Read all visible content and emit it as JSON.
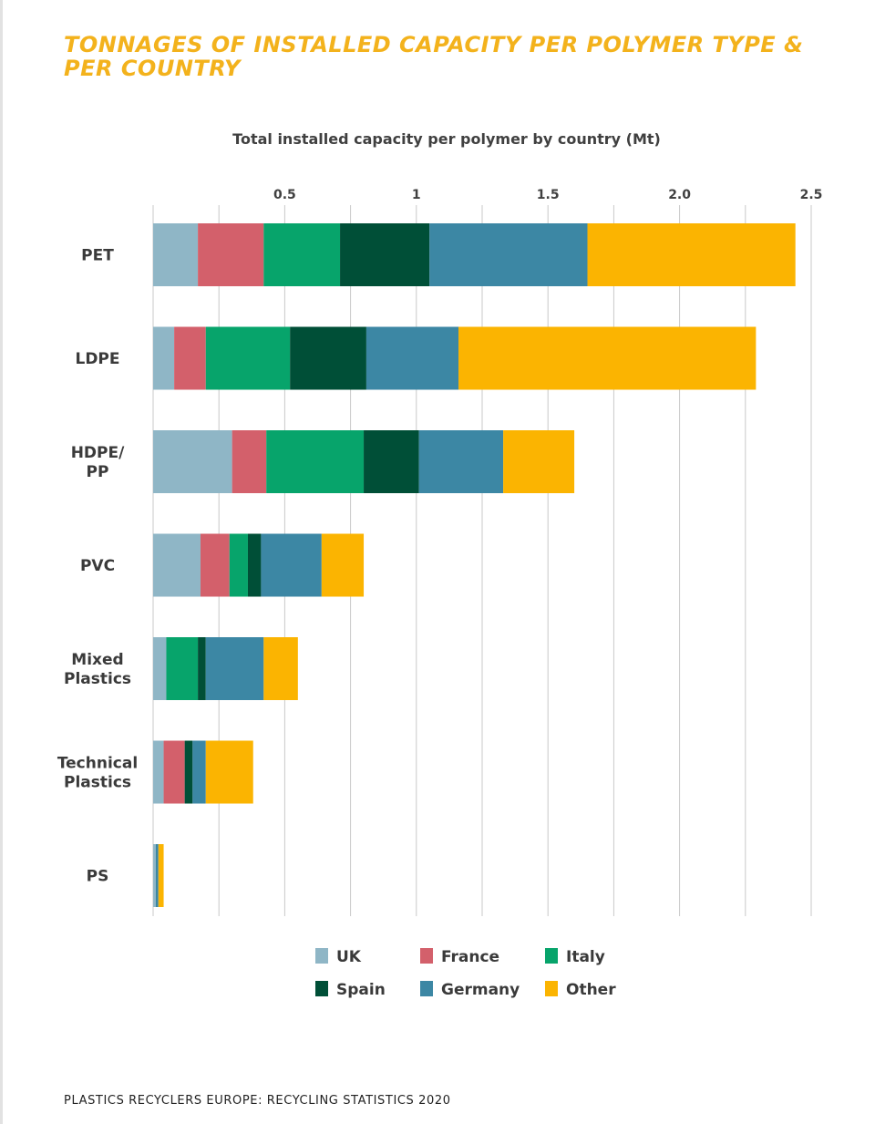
{
  "page": {
    "title": "TONNAGES OF INSTALLED CAPACITY PER POLYMER TYPE & PER COUNTRY",
    "footer": "PLASTICS RECYCLERS EUROPE: RECYCLING STATISTICS 2020"
  },
  "colors": {
    "title": "#f3b21c",
    "UK": "#8fb6c6",
    "France": "#d3606b",
    "Italy": "#07a46b",
    "Spain": "#004f37",
    "Germany": "#3c87a4",
    "Other": "#fbb401",
    "gridline": "#c9c9c9"
  },
  "chart_data": {
    "type": "bar",
    "orientation": "horizontal",
    "stacked": true,
    "title": "Total installed capacity per polymer by country (Mt)",
    "xlabel": "",
    "ylabel": "",
    "xlim": [
      0,
      2.5
    ],
    "x_ticks": [
      {
        "value": 0.5,
        "label": "0.5"
      },
      {
        "value": 1.0,
        "label": "1"
      },
      {
        "value": 1.5,
        "label": "1.5"
      },
      {
        "value": 2.0,
        "label": "2.0"
      },
      {
        "value": 2.5,
        "label": "2.5"
      }
    ],
    "gridlines": true,
    "legend_position": "bottom",
    "categories": [
      [
        "PET"
      ],
      [
        "LDPE"
      ],
      [
        "HDPE/",
        "PP"
      ],
      [
        "PVC"
      ],
      [
        "Mixed",
        "Plastics"
      ],
      [
        "Technical",
        "Plastics"
      ],
      [
        "PS"
      ]
    ],
    "series": [
      {
        "name": "UK",
        "values": [
          0.17,
          0.08,
          0.3,
          0.18,
          0.05,
          0.04,
          0.01
        ]
      },
      {
        "name": "France",
        "values": [
          0.25,
          0.12,
          0.13,
          0.11,
          0.0,
          0.08,
          0.0
        ]
      },
      {
        "name": "Italy",
        "values": [
          0.29,
          0.32,
          0.37,
          0.07,
          0.12,
          0.0,
          0.0
        ]
      },
      {
        "name": "Spain",
        "values": [
          0.34,
          0.29,
          0.21,
          0.05,
          0.03,
          0.03,
          0.0
        ]
      },
      {
        "name": "Germany",
        "values": [
          0.6,
          0.35,
          0.32,
          0.23,
          0.22,
          0.05,
          0.01
        ]
      },
      {
        "name": "Other",
        "values": [
          0.79,
          1.13,
          0.27,
          0.16,
          0.13,
          0.18,
          0.02
        ]
      }
    ]
  }
}
